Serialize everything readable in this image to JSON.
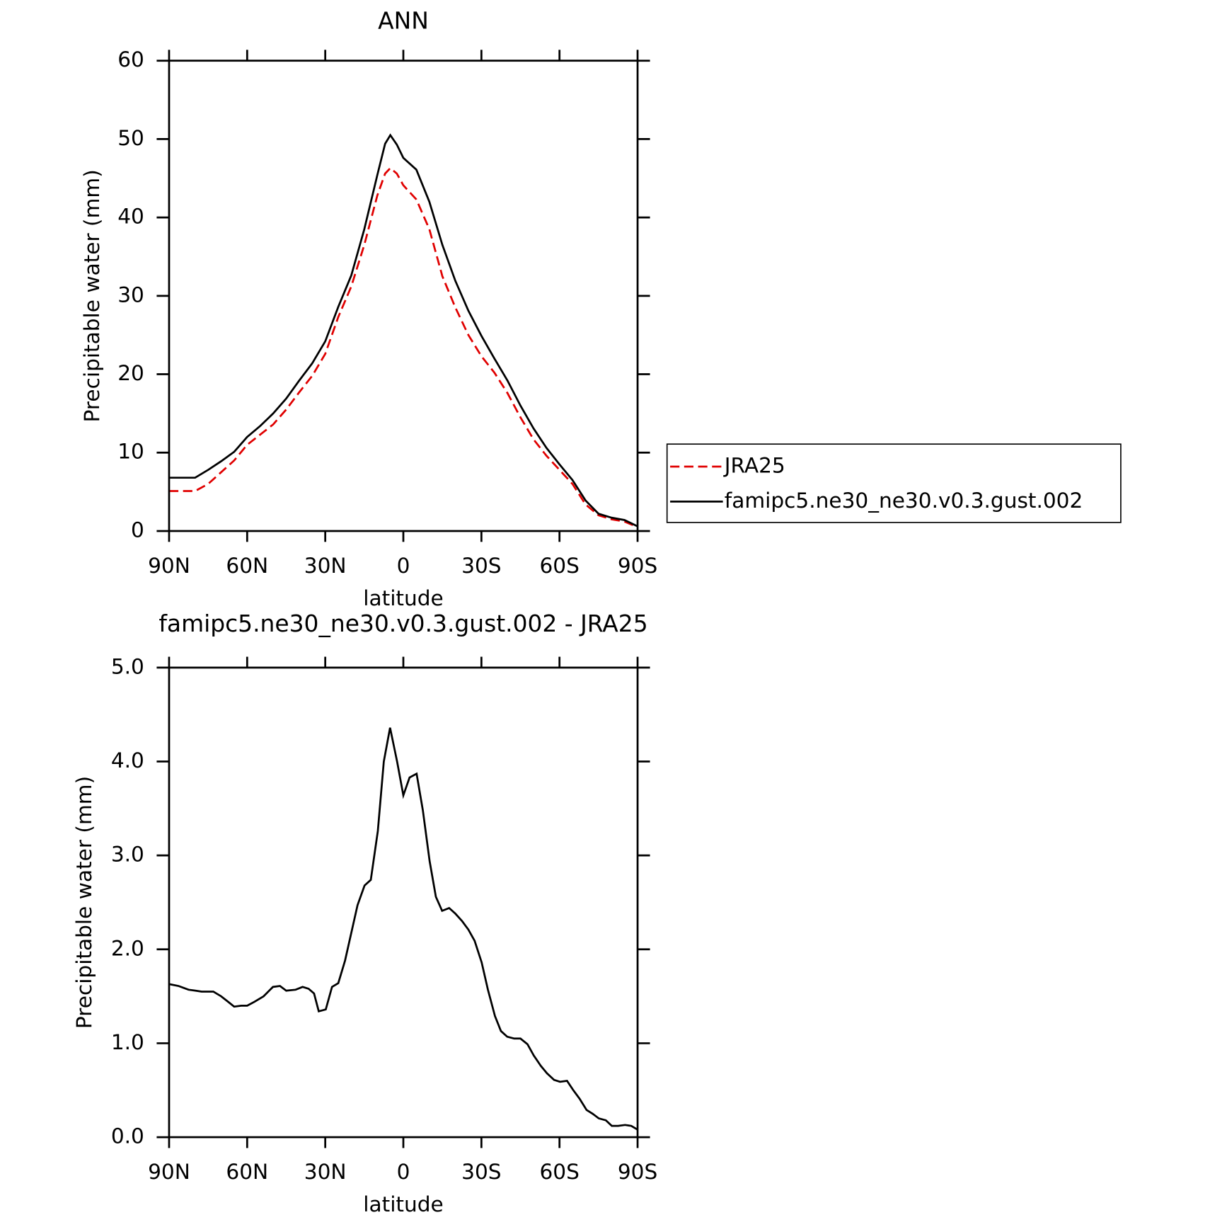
{
  "chart_data": [
    {
      "type": "line",
      "title": "ANN",
      "xlabel": "latitude",
      "ylabel": "Precipitable water (mm)",
      "x": [
        90,
        85,
        80,
        75,
        70,
        65,
        60,
        55,
        50,
        45,
        40,
        35,
        30,
        25,
        20,
        15,
        10,
        7,
        5,
        2.5,
        0,
        -5,
        -10,
        -15,
        -20,
        -25,
        -30,
        -35,
        -40,
        -45,
        -50,
        -55,
        -60,
        -65,
        -70,
        -75,
        -80,
        -85,
        -90
      ],
      "series": [
        {
          "name": "JRA25",
          "color": "#e00000",
          "line_style": "dashed",
          "values": [
            5.1,
            5.1,
            5.1,
            6.0,
            7.5,
            9.0,
            11.0,
            12.3,
            13.6,
            15.5,
            17.7,
            19.8,
            22.6,
            27.3,
            31.2,
            36.5,
            42.8,
            45.6,
            46.3,
            45.6,
            44.1,
            42.3,
            38.5,
            32.5,
            28.5,
            25.0,
            22.3,
            20.2,
            17.6,
            14.5,
            11.7,
            9.6,
            7.8,
            6.0,
            3.4,
            2.0,
            1.5,
            1.2,
            0.5
          ]
        },
        {
          "name": "famipc5.ne30_ne30.v0.3.gust.002",
          "color": "#000000",
          "line_style": "solid",
          "values": [
            6.8,
            6.8,
            6.8,
            7.8,
            8.9,
            10.1,
            12.0,
            13.4,
            15.0,
            16.9,
            19.2,
            21.4,
            24.2,
            28.6,
            32.6,
            38.5,
            45.4,
            49.4,
            50.5,
            49.3,
            47.6,
            46.1,
            42.0,
            36.5,
            31.9,
            28.1,
            24.9,
            22.0,
            19.2,
            16.0,
            13.1,
            10.6,
            8.5,
            6.5,
            3.9,
            2.2,
            1.7,
            1.4,
            0.6
          ]
        }
      ],
      "xlim": [
        90,
        -90
      ],
      "xticks": [
        {
          "value": 90,
          "label": "90N"
        },
        {
          "value": 60,
          "label": "60N"
        },
        {
          "value": 30,
          "label": "30N"
        },
        0,
        {
          "value": -30,
          "label": "30S"
        },
        {
          "value": -60,
          "label": "60S"
        },
        {
          "value": -90,
          "label": "90S"
        }
      ],
      "ylim": [
        0,
        60
      ],
      "yticks": [
        0,
        10,
        20,
        30,
        40,
        50,
        60
      ],
      "legend": "outside right"
    },
    {
      "type": "line",
      "title": "famipc5.ne30_ne30.v0.3.gust.002 - JRA25",
      "xlabel": "latitude",
      "ylabel": "Precipitable water (mm)",
      "x": [
        90,
        86.4,
        82.5,
        79.9,
        77.5,
        73.0,
        70.0,
        67.7,
        65.0,
        62.3,
        60.0,
        57.3,
        53.7,
        50.1,
        47.4,
        45.0,
        41.4,
        38.7,
        36.4,
        34.3,
        32.5,
        29.8,
        27.4,
        25.0,
        22.4,
        17.6,
        14.9,
        12.5,
        9.8,
        7.5,
        5.1,
        2.4,
        0,
        -2.4,
        -5.1,
        -7.5,
        -10.1,
        -12.5,
        -14.9,
        -17.6,
        -20.0,
        -22.6,
        -25.0,
        -27.4,
        -30.1,
        -32.5,
        -35.2,
        -37.5,
        -39.9,
        -42.6,
        -45.0,
        -47.7,
        -50.1,
        -52.8,
        -55.2,
        -57.9,
        -60.2,
        -62.9,
        -65.3,
        -67.7,
        -70.4,
        -72.7,
        -75.1,
        -77.8,
        -80.1,
        -82.5,
        -85.2,
        -87.6,
        -90
      ],
      "series": [
        {
          "color": "#000000",
          "line_style": "solid",
          "values": [
            1.63,
            1.61,
            1.57,
            1.56,
            1.55,
            1.55,
            1.5,
            1.45,
            1.39,
            1.4,
            1.4,
            1.44,
            1.5,
            1.6,
            1.61,
            1.56,
            1.57,
            1.6,
            1.58,
            1.53,
            1.34,
            1.36,
            1.6,
            1.64,
            1.88,
            2.47,
            2.68,
            2.74,
            3.26,
            4.0,
            4.36,
            4.0,
            3.64,
            3.83,
            3.87,
            3.48,
            2.94,
            2.56,
            2.41,
            2.44,
            2.38,
            2.3,
            2.21,
            2.09,
            1.86,
            1.57,
            1.29,
            1.13,
            1.07,
            1.05,
            1.05,
            0.99,
            0.87,
            0.76,
            0.68,
            0.61,
            0.59,
            0.6,
            0.5,
            0.41,
            0.29,
            0.25,
            0.2,
            0.18,
            0.12,
            0.12,
            0.13,
            0.12,
            0.08
          ]
        }
      ],
      "xlim": [
        90,
        -90
      ],
      "xticks": [
        {
          "value": 90,
          "label": "90N"
        },
        {
          "value": 60,
          "label": "60N"
        },
        {
          "value": 30,
          "label": "30N"
        },
        0,
        {
          "value": -30,
          "label": "30S"
        },
        {
          "value": -60,
          "label": "60S"
        },
        {
          "value": -90,
          "label": "90S"
        }
      ],
      "ylim": [
        0,
        5
      ],
      "yticks": [
        {
          "value": 0,
          "label": "0.0"
        },
        {
          "value": 1,
          "label": "1.0"
        },
        {
          "value": 2,
          "label": "2.0"
        },
        {
          "value": 3,
          "label": "3.0"
        },
        {
          "value": 4,
          "label": "4.0"
        },
        {
          "value": 5,
          "label": "5.0"
        }
      ]
    }
  ]
}
